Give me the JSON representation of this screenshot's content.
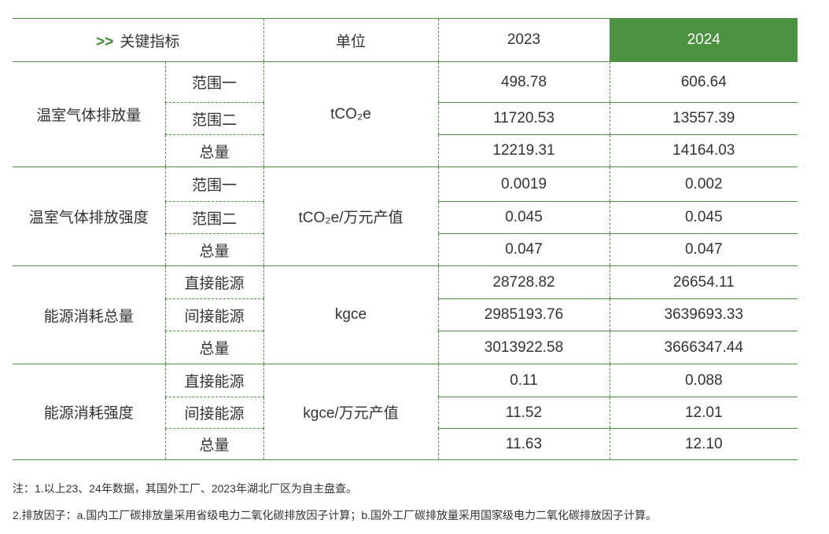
{
  "header": {
    "indicator": "关键指标",
    "indicator_prefix": ">>",
    "unit": "单位",
    "year1": "2023",
    "year2": "2024"
  },
  "colors": {
    "accent": "#4a9140"
  },
  "groups": [
    {
      "name": "温室气体排放量",
      "unit": "tCO₂e",
      "rows": [
        {
          "label": "范围一",
          "v2023": "498.78",
          "v2024": "606.64"
        },
        {
          "label": "范围二",
          "v2023": "11720.53",
          "v2024": "13557.39"
        },
        {
          "label": "总量",
          "v2023": "12219.31",
          "v2024": "14164.03"
        }
      ]
    },
    {
      "name": "温室气体排放强度",
      "unit": "tCO₂e/万元产值",
      "rows": [
        {
          "label": "范围一",
          "v2023": "0.0019",
          "v2024": "0.002"
        },
        {
          "label": "范围二",
          "v2023": "0.045",
          "v2024": "0.045"
        },
        {
          "label": "总量",
          "v2023": "0.047",
          "v2024": "0.047"
        }
      ]
    },
    {
      "name": "能源消耗总量",
      "unit": "kgce",
      "rows": [
        {
          "label": "直接能源",
          "v2023": "28728.82",
          "v2024": "26654.11"
        },
        {
          "label": "间接能源",
          "v2023": "2985193.76",
          "v2024": "3639693.33"
        },
        {
          "label": "总量",
          "v2023": "3013922.58",
          "v2024": "3666347.44"
        }
      ]
    },
    {
      "name": "能源消耗强度",
      "unit": "kgce/万元产值",
      "rows": [
        {
          "label": "直接能源",
          "v2023": "0.11",
          "v2024": "0.088"
        },
        {
          "label": "间接能源",
          "v2023": "11.52",
          "v2024": "12.01"
        },
        {
          "label": "总量",
          "v2023": "11.63",
          "v2024": "12.10"
        }
      ]
    }
  ],
  "notes": [
    "注：1.以上23、24年数据，其国外工厂、2023年湖北厂区为自主盘查。",
    "2.排放因子：a.国内工厂碳排放量采用省级电力二氧化碳排放因子计算；b.国外工厂碳排放量采用国家级电力二氧化碳排放因子计算。"
  ]
}
